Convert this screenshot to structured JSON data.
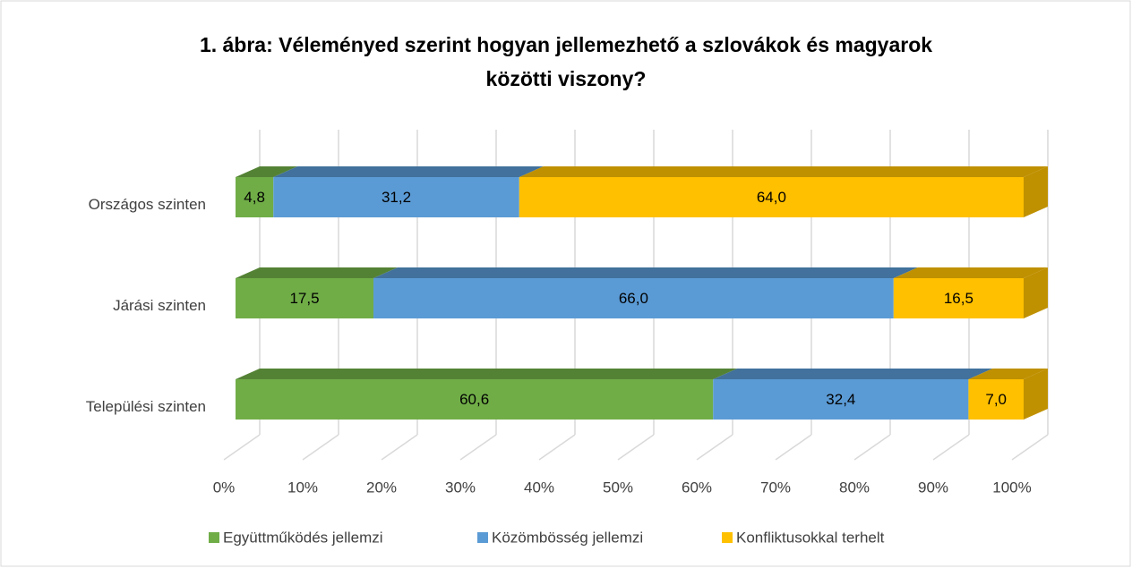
{
  "chart_data": {
    "type": "bar3d_stacked_horizontal",
    "title": [
      "1. ábra: Véleményed szerint hogyan jellemezhető a szlovákok és magyarok",
      "közötti viszony?"
    ],
    "categories": [
      "Országos szinten",
      "Járási szinten",
      "Települési szinten"
    ],
    "series": [
      {
        "name": "Együttműködés jellemzi",
        "color": "#70ad47",
        "top_color": "#548235",
        "values": [
          4.8,
          17.5,
          60.6
        ],
        "value_labels": [
          "4,8",
          "17,5",
          "60,6"
        ]
      },
      {
        "name": "Közömbösség jellemzi",
        "color": "#5b9bd5",
        "top_color": "#41719c",
        "values": [
          31.2,
          66.0,
          32.4
        ],
        "value_labels": [
          "31,2",
          "66,0",
          "32,4"
        ]
      },
      {
        "name": "Konfliktusokkal terhelt",
        "color": "#ffc000",
        "top_color": "#bf9000",
        "values": [
          64.0,
          16.5,
          7.0
        ],
        "value_labels": [
          "64,0",
          "16,5",
          "7,0"
        ]
      }
    ],
    "xlim": [
      0,
      100
    ],
    "xticks": [
      {
        "value": 0,
        "label": "0%"
      },
      {
        "value": 10,
        "label": "10%"
      },
      {
        "value": 20,
        "label": "20%"
      },
      {
        "value": 30,
        "label": "30%"
      },
      {
        "value": 40,
        "label": "40%"
      },
      {
        "value": 50,
        "label": "50%"
      },
      {
        "value": 60,
        "label": "60%"
      },
      {
        "value": 70,
        "label": "70%"
      },
      {
        "value": 80,
        "label": "80%"
      },
      {
        "value": 90,
        "label": "90%"
      },
      {
        "value": 100,
        "label": "100%"
      }
    ],
    "grid": true,
    "legend": "bottom"
  }
}
